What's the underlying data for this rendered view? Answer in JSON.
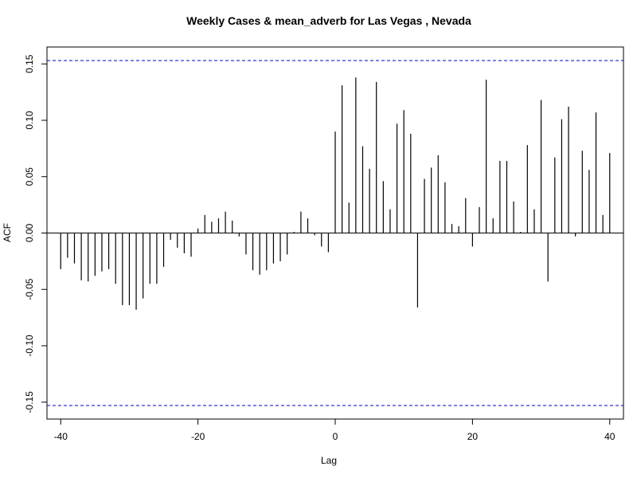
{
  "chart_data": {
    "type": "bar",
    "title": "Weekly Cases & mean_adverb for Las Vegas , Nevada",
    "xlabel": "Lag",
    "ylabel": "ACF",
    "xlim": [
      -42,
      42
    ],
    "ylim": [
      -0.165,
      0.165
    ],
    "x_ticks": [
      -40,
      -20,
      0,
      20,
      40
    ],
    "x_tick_labels": [
      "-40",
      "-20",
      "0",
      "20",
      "40"
    ],
    "y_ticks": [
      -0.15,
      -0.1,
      -0.05,
      0.0,
      0.05,
      0.1,
      0.15
    ],
    "y_tick_labels": [
      "-0.15",
      "-0.10",
      "-0.05",
      "0.00",
      "0.05",
      "0.10",
      "0.15"
    ],
    "confidence_limit": 0.153,
    "grid": false,
    "colors": {
      "bars": "#000000",
      "confidence": "#0000cc",
      "zero_line": "#000000"
    },
    "lags": [
      -40,
      -39,
      -38,
      -37,
      -36,
      -35,
      -34,
      -33,
      -32,
      -31,
      -30,
      -29,
      -28,
      -27,
      -26,
      -25,
      -24,
      -23,
      -22,
      -21,
      -20,
      -19,
      -18,
      -17,
      -16,
      -15,
      -14,
      -13,
      -12,
      -11,
      -10,
      -9,
      -8,
      -7,
      -6,
      -5,
      -4,
      -3,
      -2,
      -1,
      0,
      1,
      2,
      3,
      4,
      5,
      6,
      7,
      8,
      9,
      10,
      11,
      12,
      13,
      14,
      15,
      16,
      17,
      18,
      19,
      20,
      21,
      22,
      23,
      24,
      25,
      26,
      27,
      28,
      29,
      30,
      31,
      32,
      33,
      34,
      35,
      36,
      37,
      38,
      39,
      40
    ],
    "values": [
      -0.032,
      -0.022,
      -0.027,
      -0.042,
      -0.043,
      -0.038,
      -0.034,
      -0.032,
      -0.045,
      -0.064,
      -0.064,
      -0.068,
      -0.058,
      -0.045,
      -0.045,
      -0.03,
      -0.006,
      -0.013,
      -0.018,
      -0.021,
      0.004,
      0.016,
      0.01,
      0.013,
      0.019,
      0.011,
      -0.003,
      -0.019,
      -0.033,
      -0.037,
      -0.033,
      -0.027,
      -0.025,
      -0.019,
      0.001,
      0.019,
      0.013,
      -0.002,
      -0.012,
      -0.017,
      0.09,
      0.131,
      0.027,
      0.138,
      0.077,
      0.057,
      0.134,
      0.046,
      0.021,
      0.097,
      0.109,
      0.088,
      -0.066,
      0.048,
      0.058,
      0.069,
      0.045,
      0.008,
      0.006,
      0.031,
      -0.012,
      0.023,
      0.136,
      0.013,
      0.064,
      0.064,
      0.028,
      0.001,
      0.078,
      0.021,
      0.118,
      -0.043,
      0.067,
      0.101,
      0.112,
      -0.003,
      0.073,
      0.056,
      0.107,
      0.016,
      0.071
    ]
  }
}
